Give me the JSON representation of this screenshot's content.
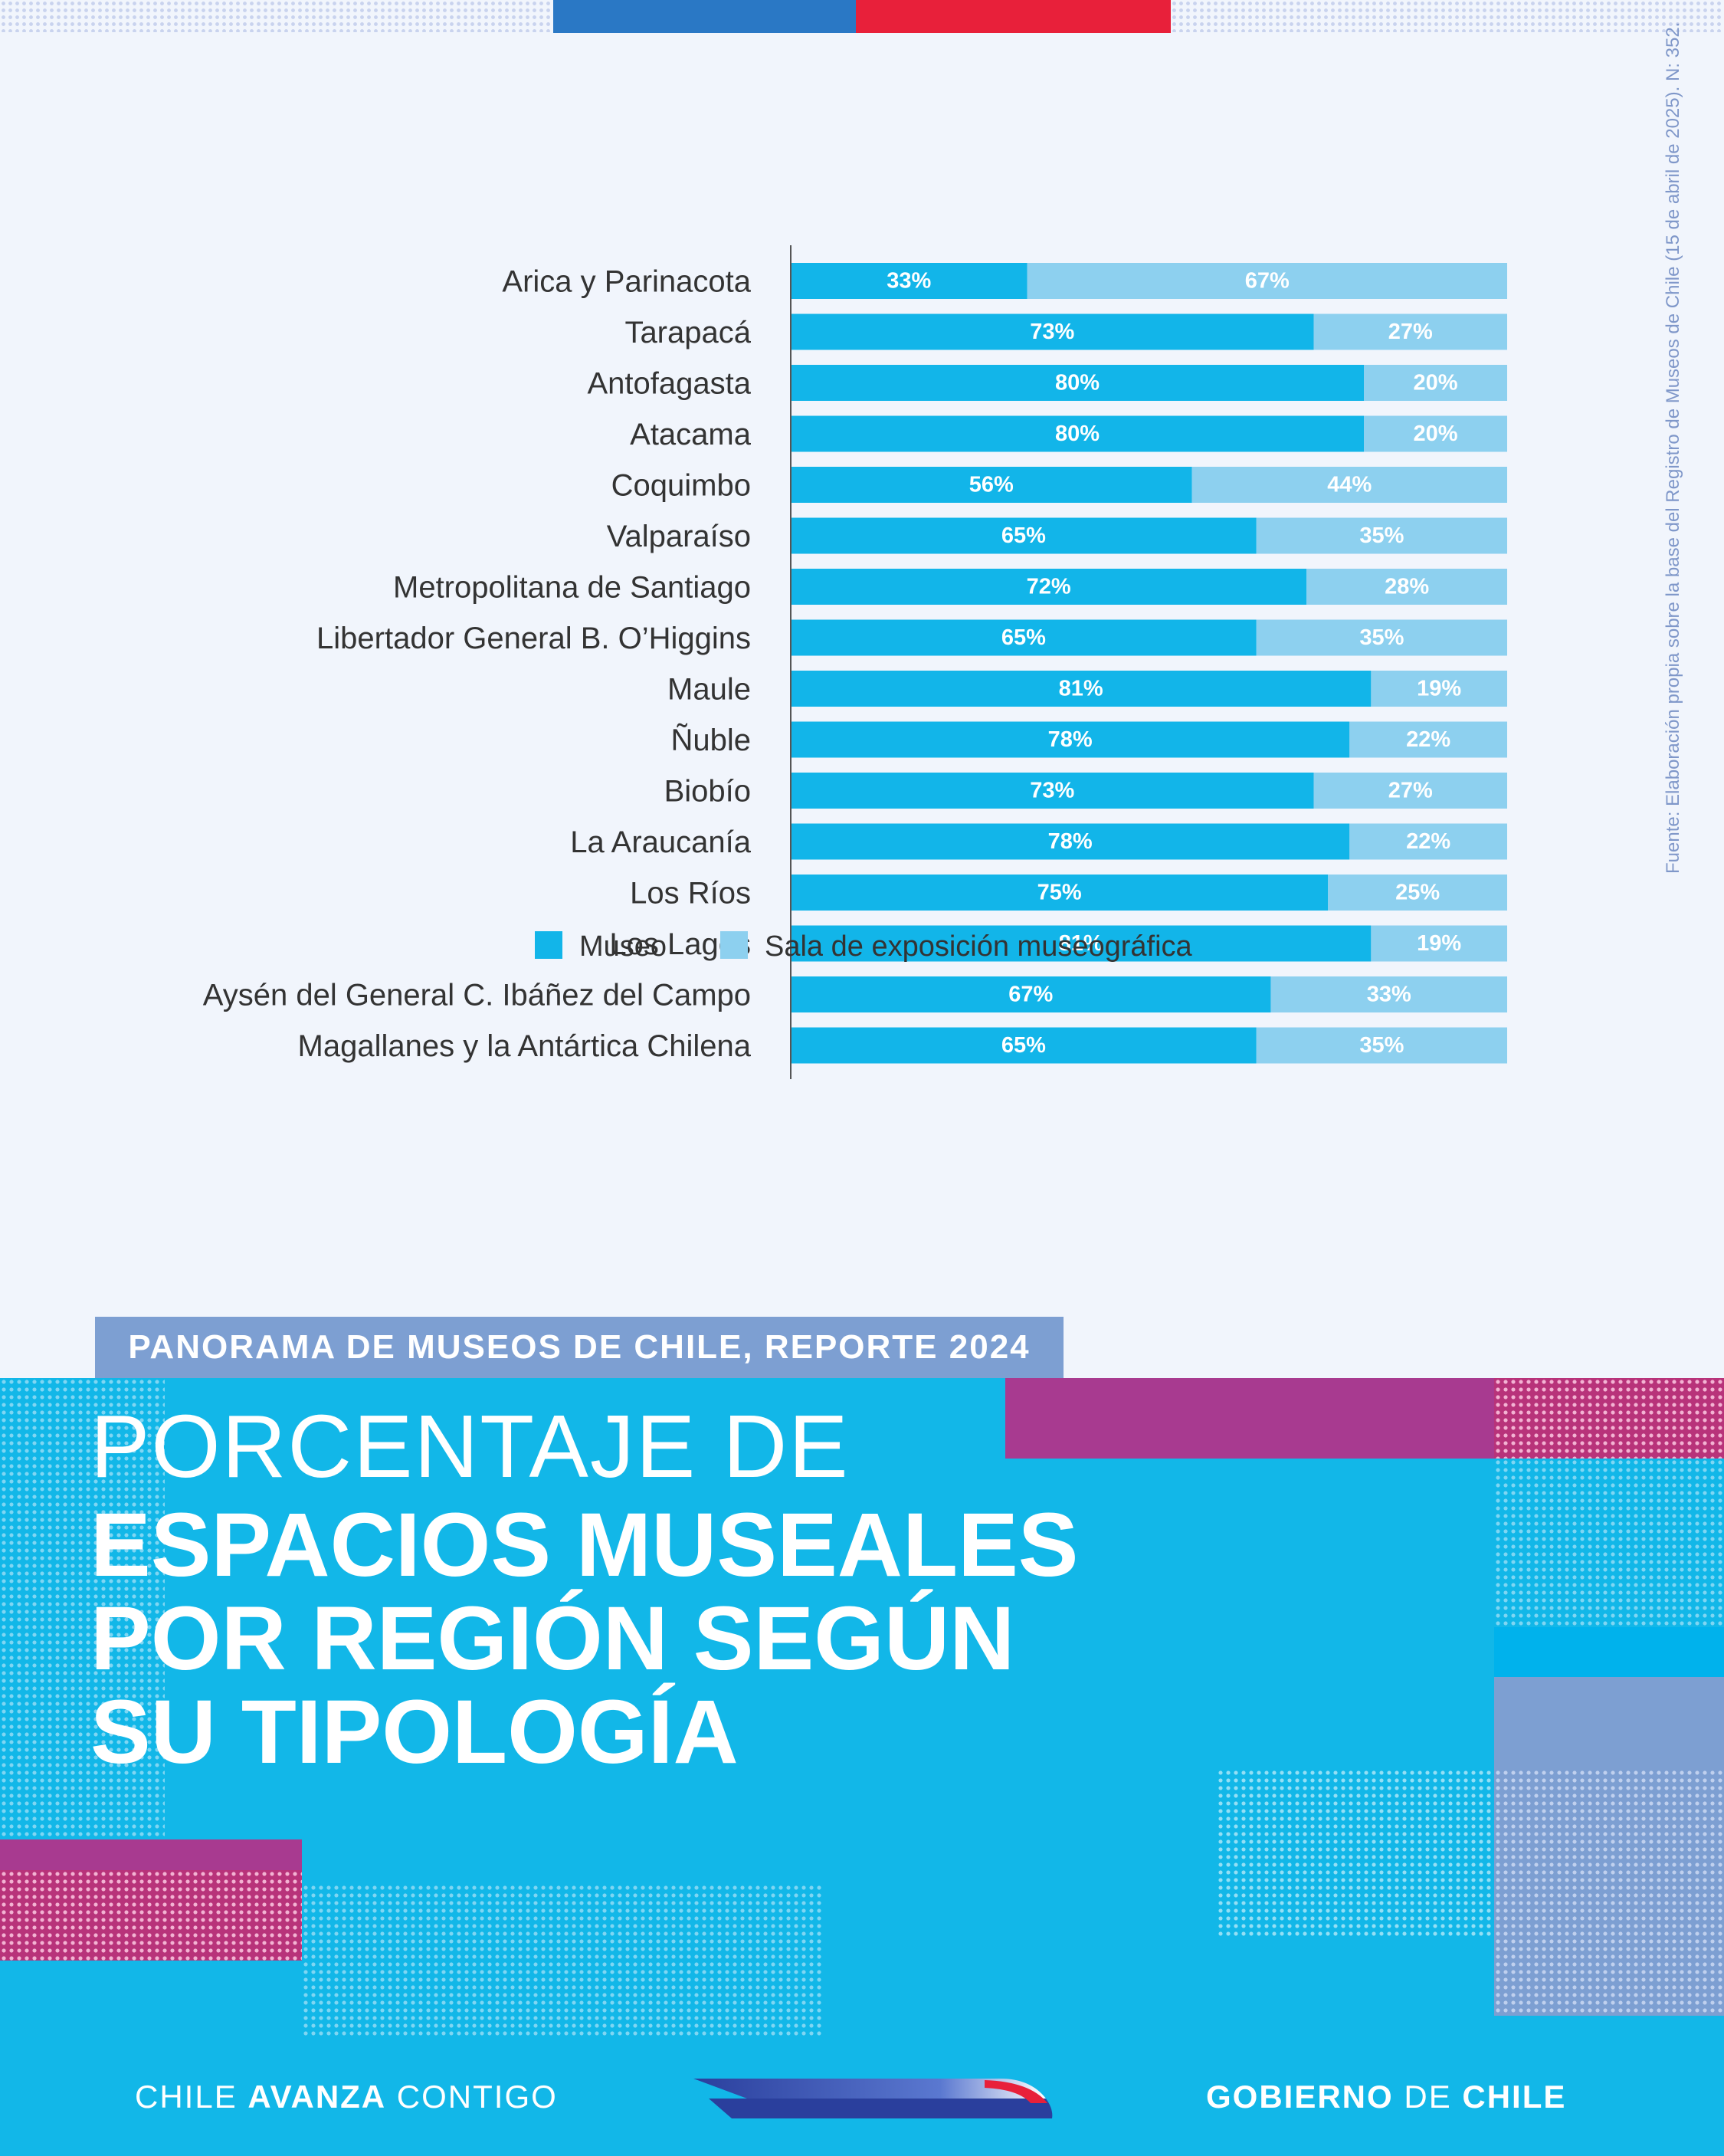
{
  "colors": {
    "museo": "#12b5e9",
    "sala": "#8dd0ef",
    "flag_blue": "#2a78c5",
    "flag_red": "#e8203a",
    "banner": "#12b7e8",
    "accent_magenta": "#a83a90",
    "accent_periwinkle": "#7d9fd2"
  },
  "source_note": "Fuente: Elaboración propia sobre la base del Registro de Museos de Chile (15 de abril de 2025). N: 352.",
  "report_tag": "PANORAMA DE MUSEOS DE CHILE, REPORTE 2024",
  "title": {
    "light": "PORCENTAJE DE",
    "bold": "ESPACIOS MUSEALES\nPOR REGIÓN SEGÚN\nSU TIPOLOGÍA"
  },
  "footer": {
    "left_regular1": "CHILE ",
    "left_bold": "AVANZA",
    "left_regular2": " CONTIGO",
    "right_bold1": "GOBIERNO ",
    "right_regular": "DE",
    "right_bold2": " CHILE"
  },
  "chart_data": {
    "type": "bar",
    "orientation": "horizontal",
    "stacked": "100%",
    "legend_position": "bottom",
    "categories": [
      "Arica y Parinacota",
      "Tarapacá",
      "Antofagasta",
      "Atacama",
      "Coquimbo",
      "Valparaíso",
      "Metropolitana de Santiago",
      "Libertador General B. O’Higgins",
      "Maule",
      "Ñuble",
      "Biobío",
      "La Araucanía",
      "Los Ríos",
      "Los Lagos",
      "Aysén del General C. Ibáñez del Campo",
      "Magallanes y la Antártica Chilena"
    ],
    "series": [
      {
        "name": "Museo",
        "values": [
          33,
          73,
          80,
          80,
          56,
          65,
          72,
          65,
          81,
          78,
          73,
          78,
          75,
          81,
          67,
          65
        ]
      },
      {
        "name": "Sala de exposición museográfica",
        "values": [
          67,
          27,
          20,
          20,
          44,
          35,
          28,
          35,
          19,
          22,
          27,
          22,
          25,
          19,
          33,
          35
        ]
      }
    ],
    "value_suffix": "%"
  }
}
